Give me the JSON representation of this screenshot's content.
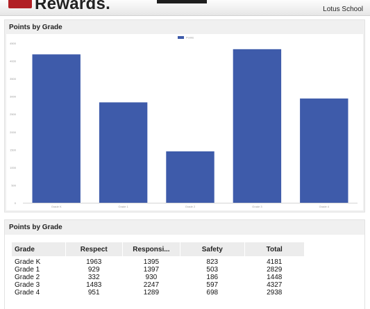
{
  "header": {
    "brand": "Rewards.",
    "school": "Lotus School"
  },
  "chart_panel": {
    "title": "Points by Grade"
  },
  "chart_data": {
    "type": "bar",
    "title": "",
    "xlabel": "",
    "ylabel": "",
    "categories": [
      "Grade K",
      "Grade 1",
      "Grade 2",
      "Grade 3",
      "Grade 4"
    ],
    "series": [
      {
        "name": "Points",
        "values": [
          4181,
          2829,
          1448,
          4327,
          2938
        ]
      }
    ],
    "yticks": [
      0,
      500,
      1000,
      1500,
      2000,
      2500,
      3000,
      3500,
      4000,
      4500
    ],
    "ylim": [
      0,
      4500
    ],
    "legend": "top-center",
    "colors": {
      "bar": "#3e5baa"
    },
    "grid": false
  },
  "table_panel": {
    "title": "Points by Grade",
    "columns": [
      "Grade",
      "Respect",
      "Responsi...",
      "Safety",
      "Total"
    ],
    "rows": [
      [
        "Grade K",
        "1963",
        "1395",
        "823",
        "4181"
      ],
      [
        "Grade 1",
        "929",
        "1397",
        "503",
        "2829"
      ],
      [
        "Grade 2",
        "332",
        "930",
        "186",
        "1448"
      ],
      [
        "Grade 3",
        "1483",
        "2247",
        "597",
        "4327"
      ],
      [
        "Grade 4",
        "951",
        "1289",
        "698",
        "2938"
      ]
    ]
  }
}
